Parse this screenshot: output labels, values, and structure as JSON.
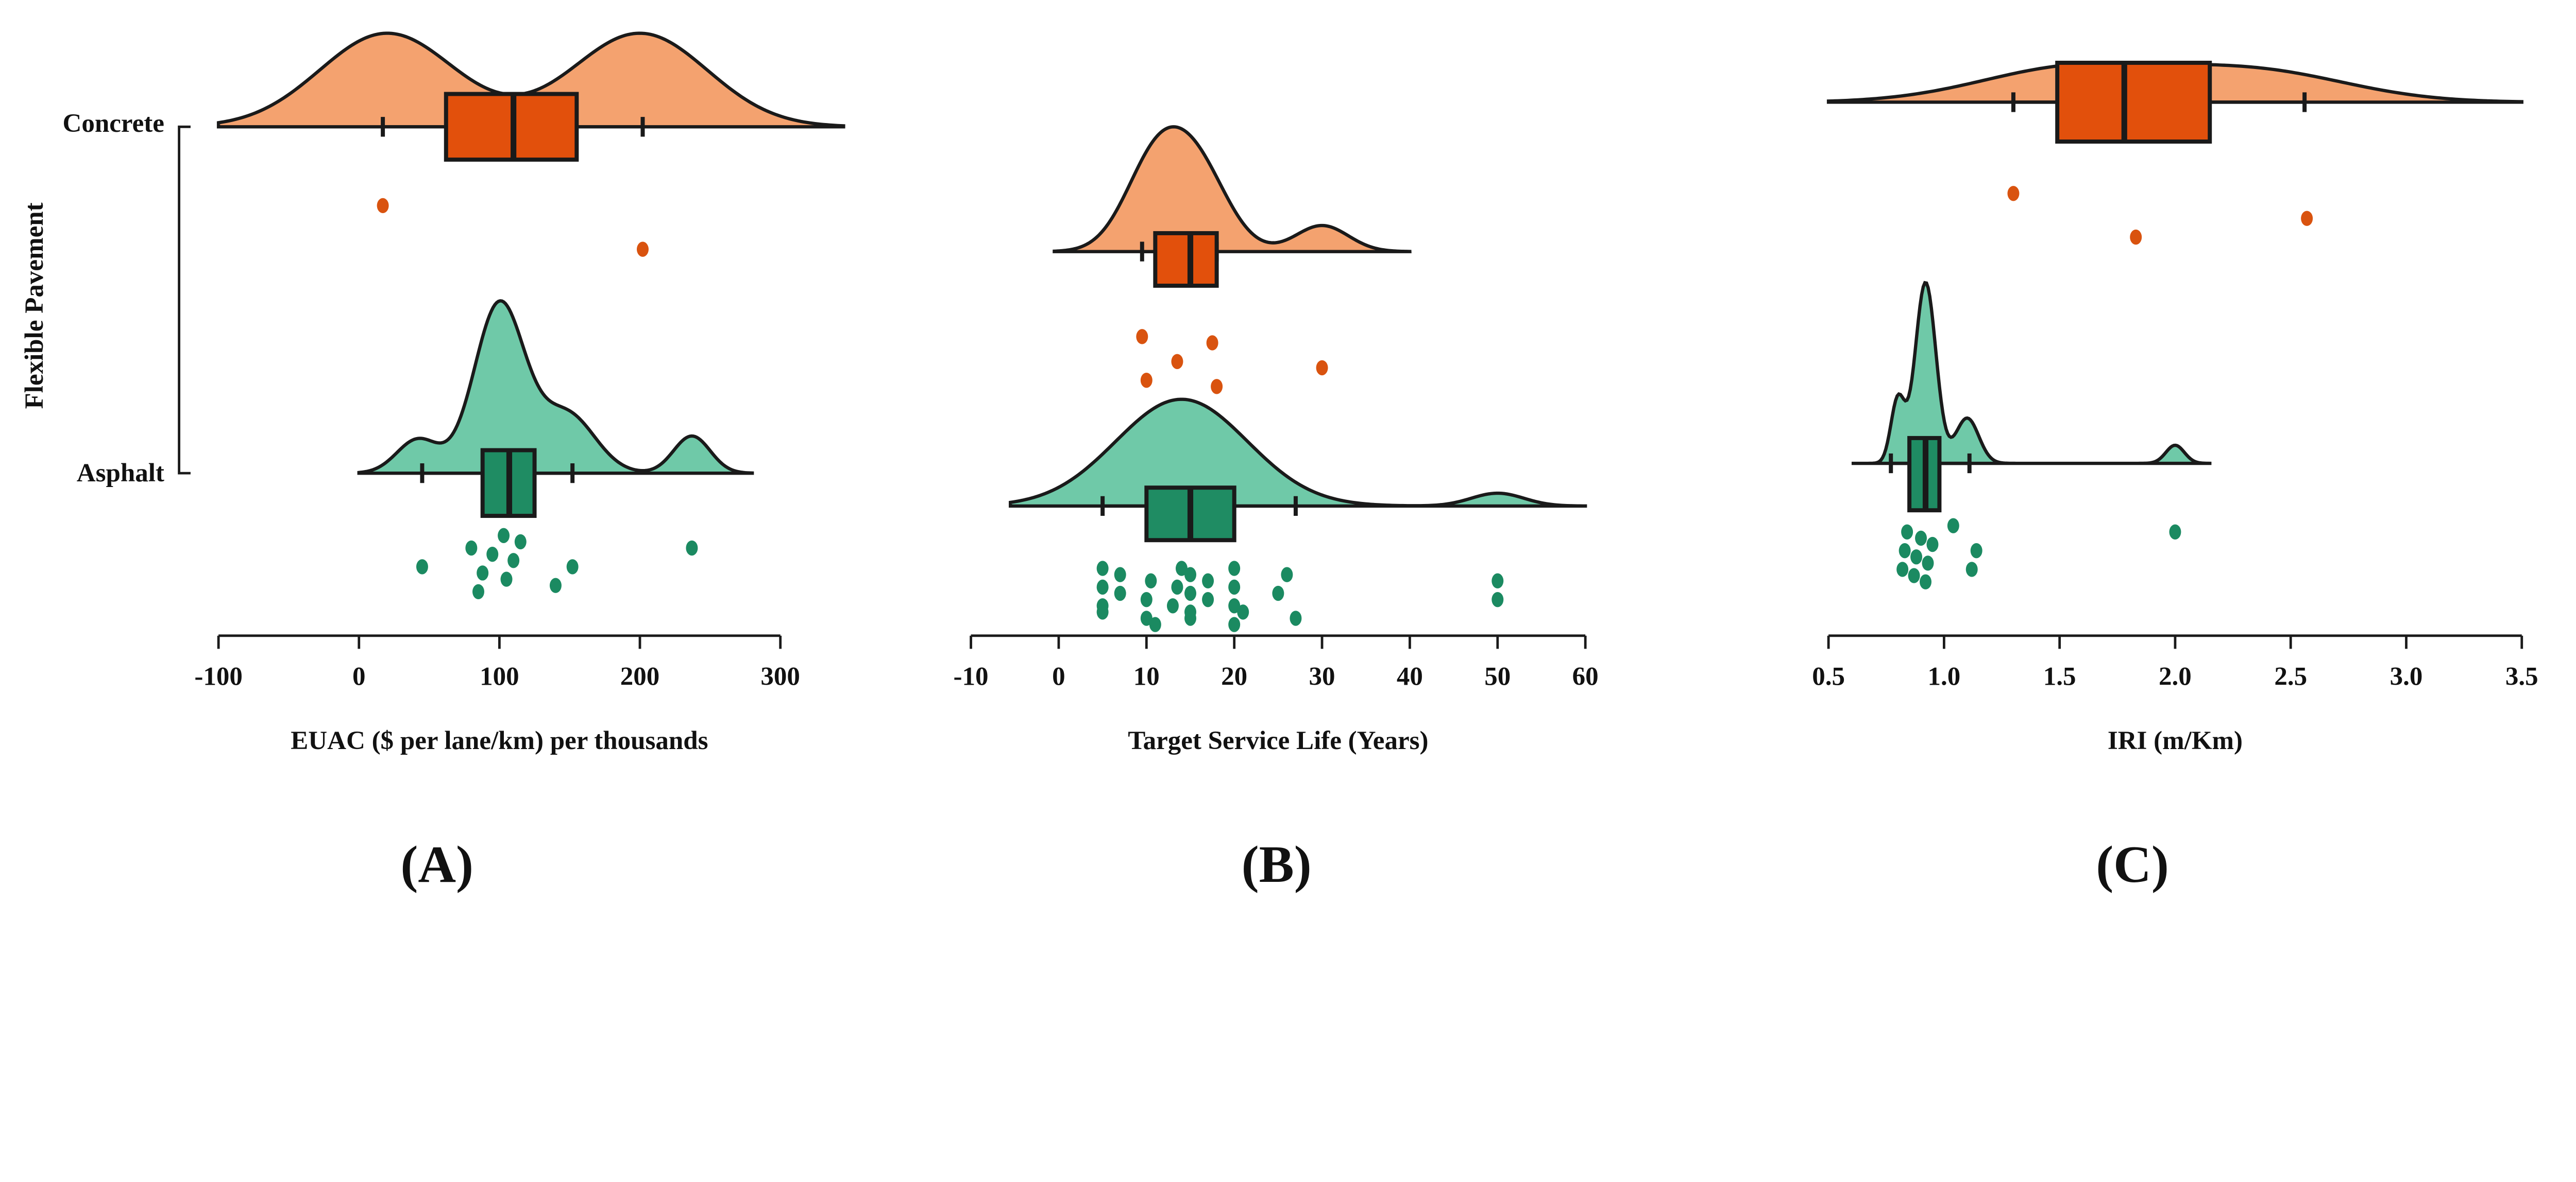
{
  "y_axis": {
    "title": "Flexible Pavement",
    "categories": [
      "Concrete",
      "Asphalt"
    ]
  },
  "colors": {
    "concrete_density": "#F4A26F",
    "concrete_box": "#E2500C",
    "concrete_point": "#D9530F",
    "asphalt_density": "#6FC9A8",
    "asphalt_box": "#1F8C63",
    "asphalt_point": "#1B8A61",
    "outline": "#1a1a1a"
  },
  "chart_data": [
    {
      "type": "raincloud",
      "panel_label": "(A)",
      "xlabel": "EUAC ($ per lane/km) per thousands",
      "xlim": [
        -100,
        345
      ],
      "xticks": [
        -100,
        0,
        100,
        200,
        300
      ],
      "xtick_labels": [
        "-100",
        "0",
        "100",
        "200",
        "300"
      ],
      "groups": [
        {
          "name": "Concrete",
          "box": {
            "whisker_low": 17,
            "q1": 62,
            "median": 110,
            "q3": 155,
            "whisker_high": 202
          },
          "density_range": [
            -100,
            345
          ],
          "density_components": [
            {
              "mu": 20,
              "sigma": 48,
              "w": 1
            },
            {
              "mu": 200,
              "sigma": 48,
              "w": 1
            }
          ],
          "points": [
            17,
            202
          ]
        },
        {
          "name": "Asphalt",
          "box": {
            "whisker_low": 45,
            "q1": 88,
            "median": 107,
            "q3": 125,
            "whisker_high": 152
          },
          "density_range": [
            0,
            280
          ],
          "density_components": [
            {
              "mu": 100,
              "sigma": 18,
              "w": 1
            },
            {
              "mu": 148,
              "sigma": 20,
              "w": 0.35
            },
            {
              "mu": 42,
              "sigma": 15,
              "w": 0.2
            },
            {
              "mu": 237,
              "sigma": 13,
              "w": 0.22
            }
          ],
          "points": [
            45,
            80,
            85,
            88,
            95,
            103,
            105,
            110,
            115,
            140,
            152,
            237
          ]
        }
      ]
    },
    {
      "type": "raincloud",
      "panel_label": "(B)",
      "xlabel": "Target Service Life (Years)",
      "xlim": [
        -10,
        60
      ],
      "xticks": [
        -10,
        0,
        10,
        20,
        30,
        40,
        50,
        60
      ],
      "xtick_labels": [
        "-10",
        "0",
        "10",
        "20",
        "30",
        "40",
        "50",
        "60"
      ],
      "groups": [
        {
          "name": "Concrete",
          "box": {
            "whisker_low": 9.5,
            "q1": 11,
            "median": 15,
            "q3": 18,
            "whisker_high": 18
          },
          "density_range": [
            -0.5,
            40
          ],
          "density_components": [
            {
              "mu": 11,
              "sigma": 3.5,
              "w": 1
            },
            {
              "mu": 16,
              "sigma": 3.5,
              "w": 0.85
            },
            {
              "mu": 30,
              "sigma": 3,
              "w": 0.3
            }
          ],
          "points": [
            9.5,
            10,
            13.5,
            17.5,
            18,
            30
          ]
        },
        {
          "name": "Asphalt",
          "box": {
            "whisker_low": 5,
            "q1": 10,
            "median": 15,
            "q3": 20,
            "whisker_high": 27
          },
          "density_range": [
            -5.5,
            60
          ],
          "density_components": [
            {
              "mu": 14,
              "sigma": 7.5,
              "w": 1
            },
            {
              "mu": 50,
              "sigma": 3,
              "w": 0.12
            }
          ],
          "points": [
            5,
            5,
            5,
            5,
            7,
            7,
            10,
            10,
            10.5,
            11,
            13,
            13.5,
            14,
            15,
            15,
            15,
            15,
            17,
            17,
            20,
            20,
            20,
            20,
            21,
            25,
            26,
            27,
            50,
            50
          ]
        }
      ]
    },
    {
      "type": "raincloud",
      "panel_label": "(C)",
      "xlabel": "IRI (m/Km)",
      "xlim": [
        0.5,
        3.5
      ],
      "xticks": [
        0.5,
        1.0,
        1.5,
        2.0,
        2.5,
        3.0,
        3.5
      ],
      "xtick_labels": [
        "0.5",
        "1.0",
        "1.5",
        "2.0",
        "2.5",
        "3.0",
        "3.5"
      ],
      "groups": [
        {
          "name": "Concrete",
          "box": {
            "whisker_low": 1.3,
            "q1": 1.49,
            "median": 1.78,
            "q3": 2.15,
            "whisker_high": 2.56
          },
          "density_range": [
            0.5,
            3.5
          ],
          "density_components": [
            {
              "mu": 1.55,
              "sigma": 0.4,
              "w": 1
            },
            {
              "mu": 2.35,
              "sigma": 0.4,
              "w": 0.9
            }
          ],
          "points": [
            1.3,
            1.83,
            2.57
          ]
        },
        {
          "name": "Asphalt",
          "box": {
            "whisker_low": 0.77,
            "q1": 0.85,
            "median": 0.92,
            "q3": 0.98,
            "whisker_high": 1.11
          },
          "density_range": [
            0.6,
            2.15
          ],
          "density_components": [
            {
              "mu": 0.92,
              "sigma": 0.045,
              "w": 1
            },
            {
              "mu": 0.8,
              "sigma": 0.03,
              "w": 0.35
            },
            {
              "mu": 1.1,
              "sigma": 0.05,
              "w": 0.25
            },
            {
              "mu": 2.0,
              "sigma": 0.04,
              "w": 0.1
            }
          ],
          "points": [
            0.82,
            0.83,
            0.84,
            0.87,
            0.88,
            0.9,
            0.92,
            0.93,
            0.95,
            1.04,
            1.12,
            1.14,
            2.0
          ]
        }
      ]
    }
  ]
}
